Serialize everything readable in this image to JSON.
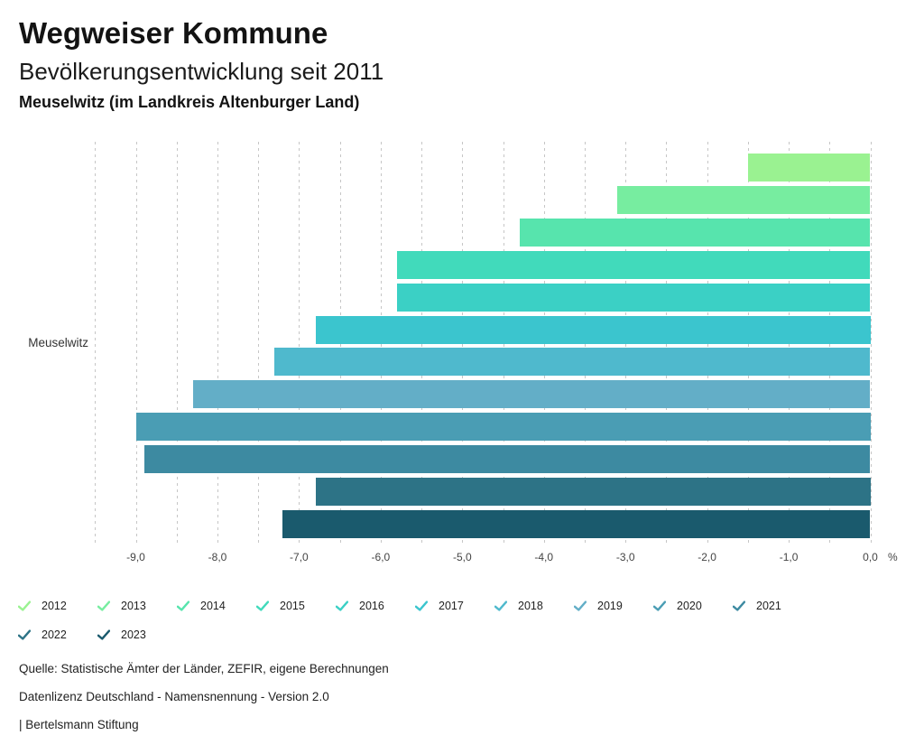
{
  "header": {
    "title": "Wegweiser Kommune",
    "subtitle": "Bevölkerungsentwicklung seit 2011",
    "region_line": "Meuselwitz (im Landkreis Altenburger Land)"
  },
  "chart_data": {
    "type": "bar",
    "orientation": "horizontal",
    "title": "Bevölkerungsentwicklung seit 2011",
    "region": "Meuselwitz (im Landkreis Altenburger Land)",
    "group_label": "Meuselwitz",
    "unit": "%",
    "xlim": [
      -9.5,
      0
    ],
    "gridlines": "vertical dashed every 0.5",
    "legend_position": "bottom",
    "series": [
      {
        "year": "2012",
        "value": -1.5,
        "color": "#9af291"
      },
      {
        "year": "2013",
        "value": -3.1,
        "color": "#77eda0"
      },
      {
        "year": "2014",
        "value": -4.3,
        "color": "#57e4ad"
      },
      {
        "year": "2015",
        "value": -5.8,
        "color": "#41dabb"
      },
      {
        "year": "2016",
        "value": -5.8,
        "color": "#3bd0c5"
      },
      {
        "year": "2017",
        "value": -6.8,
        "color": "#3bc5ce"
      },
      {
        "year": "2018",
        "value": -7.3,
        "color": "#4fb9cd"
      },
      {
        "year": "2019",
        "value": -8.3,
        "color": "#63aec7"
      },
      {
        "year": "2020",
        "value": -9.0,
        "color": "#4a9db4"
      },
      {
        "year": "2021",
        "value": -8.9,
        "color": "#3d8aa1"
      },
      {
        "year": "2022",
        "value": -6.8,
        "color": "#2d7386"
      },
      {
        "year": "2023",
        "value": -7.2,
        "color": "#1a5a6d"
      }
    ],
    "x_ticks": [
      {
        "value": -9,
        "label": "-9,0"
      },
      {
        "value": -8,
        "label": "-8,0"
      },
      {
        "value": -7,
        "label": "-7,0"
      },
      {
        "value": -6,
        "label": "-6,0"
      },
      {
        "value": -5,
        "label": "-5,0"
      },
      {
        "value": -4,
        "label": "-4,0"
      },
      {
        "value": -3,
        "label": "-3,0"
      },
      {
        "value": -2,
        "label": "-2,0"
      },
      {
        "value": -1,
        "label": "-1,0"
      },
      {
        "value": 0,
        "label": "0,0"
      }
    ],
    "axis_unit_label": "%"
  },
  "footer": {
    "source": "Quelle: Statistische Ämter der Länder, ZEFIR, eigene Berechnungen",
    "license": "Datenlizenz Deutschland - Namensnennung - Version 2.0",
    "attribution": "| Bertelsmann Stiftung"
  }
}
